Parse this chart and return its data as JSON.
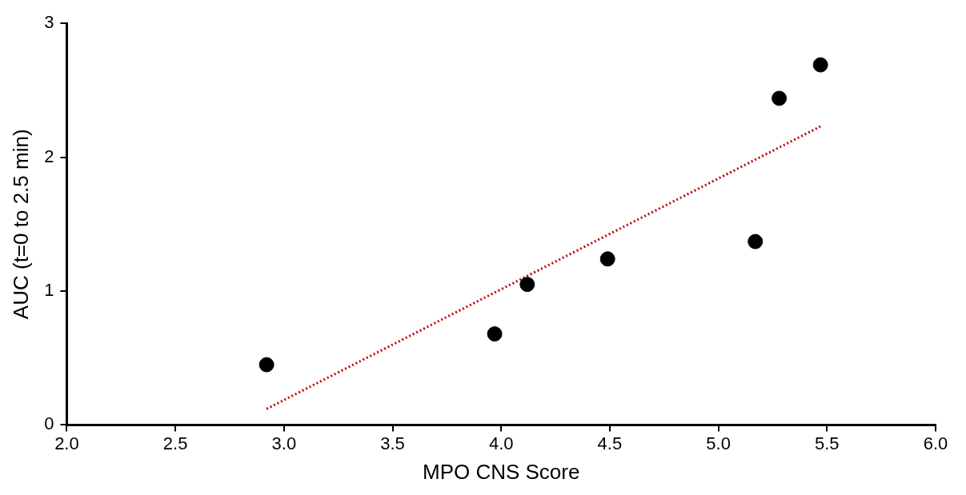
{
  "chart_data": {
    "type": "scatter",
    "xlabel": "MPO CNS Score",
    "ylabel": "AUC (t=0 to 2.5 min)",
    "xlim": [
      2.0,
      6.0
    ],
    "xticks": [
      {
        "value": 2,
        "label": "2.0"
      },
      2.5,
      {
        "value": 3,
        "label": "3.0"
      },
      3.5,
      {
        "value": 4,
        "label": "4.0"
      },
      4.5,
      {
        "value": 5,
        "label": "5.0"
      },
      5.5,
      {
        "value": 6,
        "label": "6.0"
      }
    ],
    "ylim": [
      0,
      3
    ],
    "yticks": [
      0,
      1,
      2,
      3
    ],
    "grid": false,
    "legend": false,
    "marker": "circle",
    "series": [
      {
        "type": "scatter",
        "color": "#000000",
        "x": [
          2.92,
          3.97,
          4.12,
          4.49,
          5.17,
          5.28,
          5.47
        ],
        "values": [
          0.45,
          0.68,
          1.05,
          1.24,
          1.37,
          2.44,
          2.69
        ]
      },
      {
        "type": "line",
        "color": "#c00000",
        "line_style": "dotted",
        "marker": "none",
        "x": [
          2.92,
          5.47
        ],
        "values": [
          0.12,
          2.23
        ]
      }
    ]
  }
}
